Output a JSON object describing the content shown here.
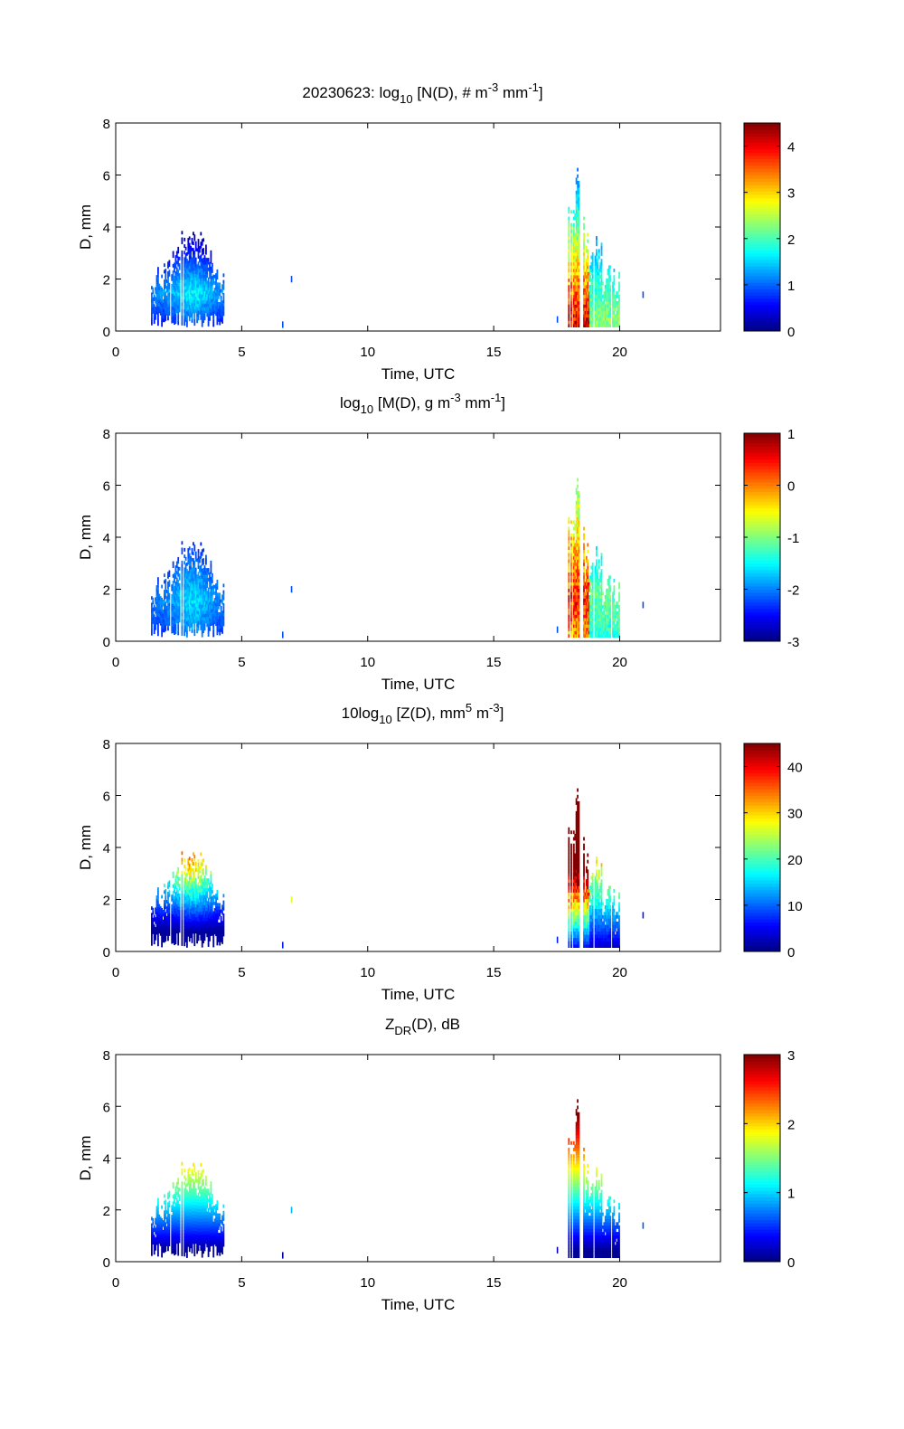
{
  "chart_data": [
    {
      "type": "heatmap",
      "title": "20230623: log10 [N(D), # m-3 mm-1]",
      "title_parts": {
        "pre": "20230623: log",
        "sub": "10",
        "mid": " [N(D), # m",
        "sup1": "-3",
        "mid2": " mm",
        "sup2": "-1",
        "post": "]"
      },
      "xlabel": "Time, UTC",
      "ylabel": "D, mm",
      "xlim": [
        0,
        24
      ],
      "ylim": [
        0,
        8
      ],
      "xticks": [
        "0",
        "5",
        "10",
        "15",
        "20"
      ],
      "yticks": [
        "0",
        "2",
        "4",
        "6",
        "8"
      ],
      "colorbar": {
        "range": [
          0,
          4.5
        ],
        "ticks": [
          "0",
          "1",
          "2",
          "3",
          "4"
        ],
        "colormap": "jet"
      },
      "events": [
        {
          "t_start": 1.4,
          "t_end": 4.3,
          "d_max": 3.9,
          "peak_value": 1.6
        },
        {
          "t_start": 17.9,
          "t_end": 20.0,
          "d_max": 6.5,
          "peak_value": 4.4
        }
      ]
    },
    {
      "type": "heatmap",
      "title": "log10 [M(D), g m-3 mm-1]",
      "title_parts": {
        "pre": "log",
        "sub": "10",
        "mid": " [M(D), g m",
        "sup1": "-3",
        "mid2": " mm",
        "sup2": "-1",
        "post": "]"
      },
      "xlabel": "Time, UTC",
      "ylabel": "D, mm",
      "xlim": [
        0,
        24
      ],
      "ylim": [
        0,
        8
      ],
      "xticks": [
        "0",
        "5",
        "10",
        "15",
        "20"
      ],
      "yticks": [
        "0",
        "2",
        "4",
        "6",
        "8"
      ],
      "colorbar": {
        "range": [
          -3,
          1
        ],
        "ticks": [
          "1",
          "0",
          "-1",
          "-2",
          "-3"
        ],
        "colormap": "jet"
      },
      "events": [
        {
          "t_start": 1.4,
          "t_end": 4.3,
          "d_max": 3.9,
          "peak_value": -1.7
        },
        {
          "t_start": 17.9,
          "t_end": 20.0,
          "d_max": 6.5,
          "peak_value": 0.3
        }
      ]
    },
    {
      "type": "heatmap",
      "title": "10log10 [Z(D),  mm5 m-3]",
      "title_parts": {
        "pre": "10log",
        "sub": "10",
        "mid": " [Z(D),  mm",
        "sup1": "5",
        "mid2": " m",
        "sup2": "-3",
        "post": "]"
      },
      "xlabel": "Time, UTC",
      "ylabel": "D, mm",
      "xlim": [
        0,
        24
      ],
      "ylim": [
        0,
        8
      ],
      "xticks": [
        "0",
        "5",
        "10",
        "15",
        "20"
      ],
      "yticks": [
        "0",
        "2",
        "4",
        "6",
        "8"
      ],
      "colorbar": {
        "range": [
          0,
          45
        ],
        "ticks": [
          "0",
          "10",
          "20",
          "30",
          "40"
        ],
        "colormap": "jet"
      },
      "events": [
        {
          "t_start": 1.4,
          "t_end": 4.3,
          "d_max": 3.9,
          "peak_value": 32
        },
        {
          "t_start": 17.9,
          "t_end": 20.0,
          "d_max": 6.5,
          "peak_value": 45
        }
      ]
    },
    {
      "type": "heatmap",
      "title": "ZDR(D), dB",
      "title_parts": {
        "pre": "Z",
        "sub": "DR",
        "mid": "(D), dB",
        "sup1": "",
        "mid2": "",
        "sup2": "",
        "post": ""
      },
      "xlabel": "Time, UTC",
      "ylabel": "D, mm",
      "xlim": [
        0,
        24
      ],
      "ylim": [
        0,
        8
      ],
      "xticks": [
        "0",
        "5",
        "10",
        "15",
        "20"
      ],
      "yticks": [
        "0",
        "2",
        "4",
        "6",
        "8"
      ],
      "colorbar": {
        "range": [
          0,
          3
        ],
        "ticks": [
          "0",
          "1",
          "2",
          "3"
        ],
        "colormap": "jet"
      },
      "events": [
        {
          "t_start": 1.4,
          "t_end": 4.3,
          "d_max": 3.9,
          "peak_value": 1.8
        },
        {
          "t_start": 17.9,
          "t_end": 20.0,
          "d_max": 6.5,
          "peak_value": 3.0
        }
      ]
    }
  ]
}
